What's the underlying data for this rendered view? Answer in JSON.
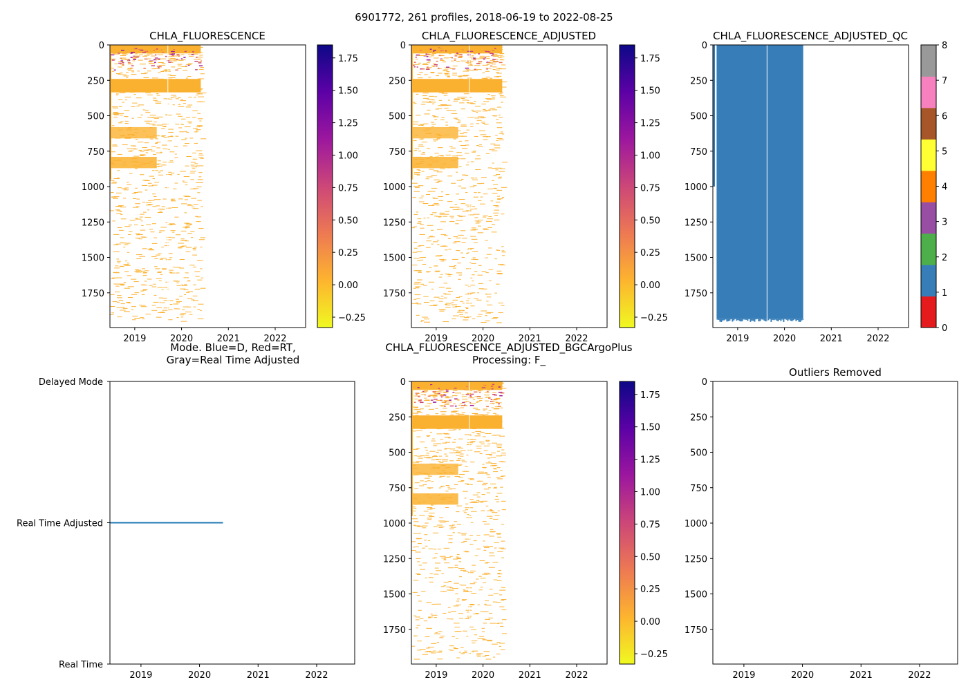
{
  "suptitle": "6901772, 261 profiles, 2018-06-19 to 2022-08-25",
  "colors": {
    "plasma": [
      "#f0f921",
      "#fdb42f",
      "#ed7953",
      "#cc4778",
      "#9c179e",
      "#5c01a6",
      "#0d0887"
    ],
    "qc": [
      "#e41a1c",
      "#377eb8",
      "#4daf4a",
      "#984ea3",
      "#ff7f00",
      "#ffff33",
      "#a65628",
      "#f781bf",
      "#999999"
    ],
    "chla": "#fbb130",
    "chla_dark": "#cc4778",
    "qc_fill": "#377eb8",
    "mode_line": "#1f77b4"
  },
  "chart_data": [
    {
      "id": "chla",
      "type": "heatmap",
      "title": "CHLA_FLUORESCENCE",
      "x_ticks": [
        "2019",
        "2020",
        "2021",
        "2022"
      ],
      "x_tick_values": [
        2019,
        2020,
        2021,
        2022
      ],
      "xlim": [
        2018.47,
        2022.65
      ],
      "y_ticks": [
        "0",
        "250",
        "500",
        "750",
        "1000",
        "1250",
        "1500",
        "1750"
      ],
      "y_tick_values": [
        0,
        250,
        500,
        750,
        1000,
        1250,
        1500,
        1750
      ],
      "ylim": [
        1995,
        0
      ],
      "data_xrange": [
        2018.47,
        2020.41
      ],
      "colorbar": {
        "ticks": [
          "−0.25",
          "0.00",
          "0.25",
          "0.50",
          "0.75",
          "1.00",
          "1.25",
          "1.50",
          "1.75"
        ],
        "tick_values": [
          -0.25,
          0,
          0.25,
          0.5,
          0.75,
          1.0,
          1.25,
          1.5,
          1.75
        ],
        "range": [
          -0.33,
          1.85
        ],
        "cmap": "plasma_r"
      }
    },
    {
      "id": "chla_adj",
      "type": "heatmap",
      "title": "CHLA_FLUORESCENCE_ADJUSTED",
      "x_ticks": [
        "2019",
        "2020",
        "2021",
        "2022"
      ],
      "x_tick_values": [
        2019,
        2020,
        2021,
        2022
      ],
      "xlim": [
        2018.47,
        2022.65
      ],
      "y_ticks": [
        "0",
        "250",
        "500",
        "750",
        "1000",
        "1250",
        "1500",
        "1750"
      ],
      "y_tick_values": [
        0,
        250,
        500,
        750,
        1000,
        1250,
        1500,
        1750
      ],
      "ylim": [
        1995,
        0
      ],
      "data_xrange": [
        2018.47,
        2020.41
      ],
      "colorbar": {
        "ticks": [
          "−0.25",
          "0.00",
          "0.25",
          "0.50",
          "0.75",
          "1.00",
          "1.25",
          "1.50",
          "1.75"
        ],
        "tick_values": [
          -0.25,
          0,
          0.25,
          0.5,
          0.75,
          1.0,
          1.25,
          1.5,
          1.75
        ],
        "range": [
          -0.33,
          1.85
        ],
        "cmap": "plasma_r"
      }
    },
    {
      "id": "chla_adj_qc",
      "type": "heatmap",
      "title": "CHLA_FLUORESCENCE_ADJUSTED_QC",
      "x_ticks": [
        "2019",
        "2020",
        "2021",
        "2022"
      ],
      "x_tick_values": [
        2019,
        2020,
        2021,
        2022
      ],
      "xlim": [
        2018.47,
        2022.65
      ],
      "y_ticks": [
        "0",
        "250",
        "500",
        "750",
        "1000",
        "1250",
        "1500",
        "1750"
      ],
      "y_tick_values": [
        0,
        250,
        500,
        750,
        1000,
        1250,
        1500,
        1750
      ],
      "ylim": [
        1995,
        0
      ],
      "data_xrange": [
        2018.55,
        2020.4
      ],
      "qc_value": 1,
      "colorbar": {
        "ticks": [
          "0",
          "1",
          "2",
          "3",
          "4",
          "5",
          "6",
          "7",
          "8"
        ],
        "tick_values": [
          0,
          1,
          2,
          3,
          4,
          5,
          6,
          7,
          8
        ],
        "range": [
          0,
          8
        ],
        "cmap": "Set1"
      }
    },
    {
      "id": "mode",
      "type": "line",
      "title_lines": [
        "Mode. Blue=D, Red=RT,",
        "Gray=Real Time Adjusted"
      ],
      "x_ticks": [
        "2019",
        "2020",
        "2021",
        "2022"
      ],
      "x_tick_values": [
        2019,
        2020,
        2021,
        2022
      ],
      "xlim": [
        2018.47,
        2022.65
      ],
      "y_ticks": [
        "Real Time",
        "Real Time Adjusted",
        "Delayed Mode"
      ],
      "y_tick_values": [
        0,
        1,
        2
      ],
      "ylim": [
        0,
        2
      ],
      "series": [
        {
          "name": "Real Time Adjusted",
          "x": [
            2018.47,
            2020.4
          ],
          "y": [
            1,
            1
          ]
        }
      ]
    },
    {
      "id": "bgcargoplus",
      "type": "heatmap",
      "title_lines": [
        "CHLA_FLUORESCENCE_ADJUSTED_BGCArgoPlus",
        "Processing: F_"
      ],
      "x_ticks": [
        "2019",
        "2020",
        "2021",
        "2022"
      ],
      "x_tick_values": [
        2019,
        2020,
        2021,
        2022
      ],
      "xlim": [
        2018.47,
        2022.65
      ],
      "y_ticks": [
        "0",
        "250",
        "500",
        "750",
        "1000",
        "1250",
        "1500",
        "1750"
      ],
      "y_tick_values": [
        0,
        250,
        500,
        750,
        1000,
        1250,
        1500,
        1750
      ],
      "ylim": [
        1995,
        0
      ],
      "data_xrange": [
        2018.47,
        2020.41
      ],
      "colorbar": {
        "ticks": [
          "−0.25",
          "0.00",
          "0.25",
          "0.50",
          "0.75",
          "1.00",
          "1.25",
          "1.50",
          "1.75"
        ],
        "tick_values": [
          -0.25,
          0,
          0.25,
          0.5,
          0.75,
          1.0,
          1.25,
          1.5,
          1.75
        ],
        "range": [
          -0.33,
          1.85
        ],
        "cmap": "plasma_r"
      }
    },
    {
      "id": "outliers",
      "type": "heatmap",
      "title": "Outliers Removed",
      "x_ticks": [
        "2019",
        "2020",
        "2021",
        "2022"
      ],
      "x_tick_values": [
        2019,
        2020,
        2021,
        2022
      ],
      "xlim": [
        2018.47,
        2022.65
      ],
      "y_ticks": [
        "0",
        "250",
        "500",
        "750",
        "1000",
        "1250",
        "1500",
        "1750"
      ],
      "y_tick_values": [
        0,
        250,
        500,
        750,
        1000,
        1250,
        1500,
        1750
      ],
      "ylim": [
        1995,
        0
      ],
      "empty": true
    }
  ]
}
